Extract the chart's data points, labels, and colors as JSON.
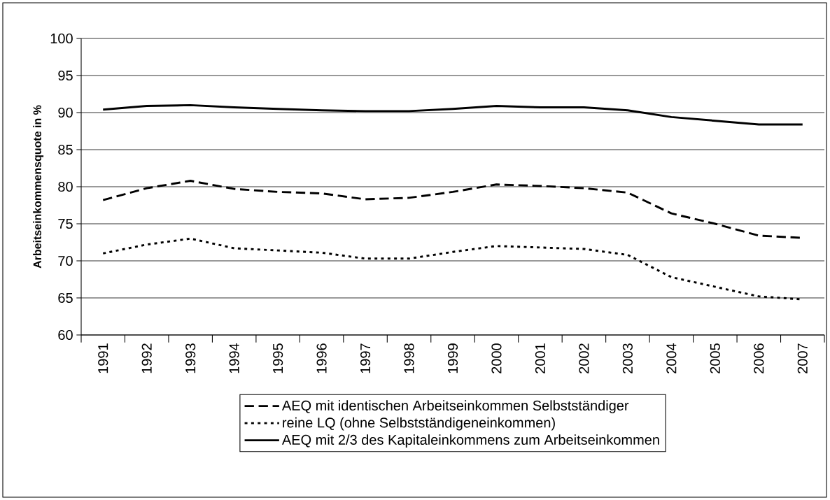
{
  "chart_data": {
    "type": "line",
    "ylabel": "Arbeitseinkommensquote in %",
    "categories": [
      "1991",
      "1992",
      "1993",
      "1994",
      "1995",
      "1996",
      "1997",
      "1998",
      "1999",
      "2000",
      "2001",
      "2002",
      "2003",
      "2004",
      "2005",
      "2006",
      "2007"
    ],
    "series": [
      {
        "name": "AEQ mit identischen Arbeitseinkommen Selbstständiger",
        "color": "#000000",
        "line_style": "dashed",
        "values": [
          78.2,
          79.8,
          80.8,
          79.7,
          79.3,
          79.1,
          78.3,
          78.5,
          79.3,
          80.3,
          80.1,
          79.8,
          79.2,
          76.4,
          75.0,
          73.4,
          73.1
        ]
      },
      {
        "name": "reine LQ (ohne Selbstständigeneinkommen)",
        "color": "#000000",
        "line_style": "dotted",
        "values": [
          71.0,
          72.2,
          73.0,
          71.7,
          71.4,
          71.1,
          70.3,
          70.3,
          71.2,
          72.0,
          71.8,
          71.6,
          70.8,
          67.8,
          66.5,
          65.2,
          64.8
        ]
      },
      {
        "name": "AEQ mit 2/3 des Kapitaleinkommens zum Arbeitseinkommen",
        "color": "#000000",
        "line_style": "solid",
        "values": [
          90.4,
          90.9,
          91.0,
          90.7,
          90.5,
          90.3,
          90.2,
          90.2,
          90.5,
          90.9,
          90.7,
          90.7,
          90.3,
          89.4,
          88.9,
          88.4,
          88.4
        ]
      }
    ],
    "ylim": [
      60,
      100
    ],
    "yticks": [
      60,
      65,
      70,
      75,
      80,
      85,
      90,
      95,
      100
    ],
    "grid": "y",
    "legend": "bottom",
    "marker": "none"
  }
}
